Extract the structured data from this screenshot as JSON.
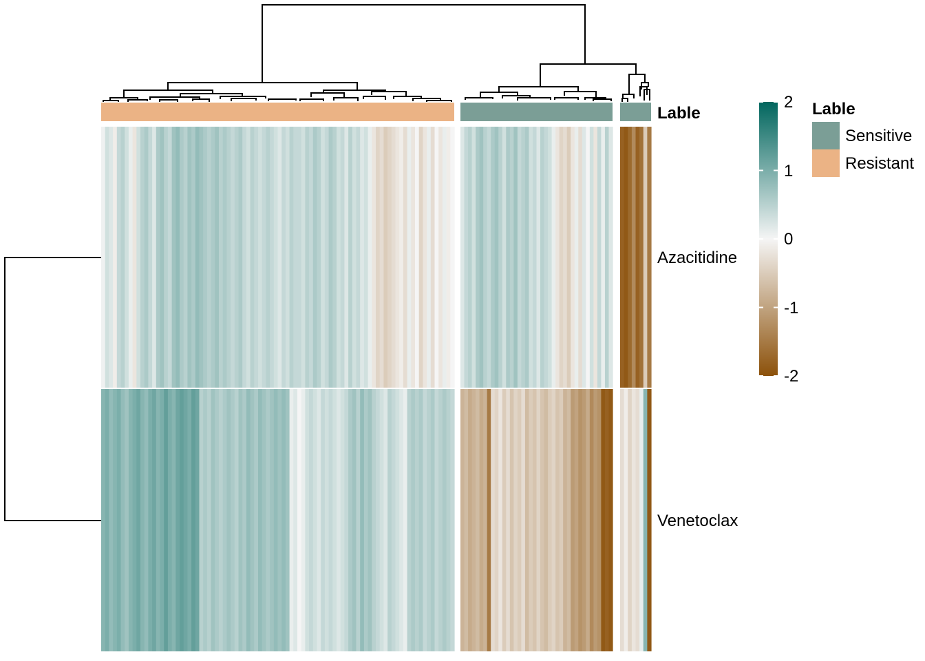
{
  "chart_data": {
    "type": "heatmap",
    "rows": [
      "Azacitidine",
      "Venetoclax"
    ],
    "column_groups": [
      {
        "label": "Resistant",
        "n_columns": 90
      },
      {
        "label": "Sensitive",
        "n_columns": 40
      },
      {
        "label": "Sensitive",
        "n_columns": 8
      }
    ],
    "annotation": {
      "title": "Lable",
      "levels": [
        {
          "label": "Sensitive",
          "color": "#7b9e96"
        },
        {
          "label": "Resistant",
          "color": "#ebb385"
        }
      ]
    },
    "color_scale": {
      "title": "",
      "min": -2,
      "max": 2,
      "ticks": [
        "2",
        "1",
        "0",
        "-1",
        "-2"
      ],
      "colors": {
        "-2": "#8c510a",
        "0": "#f5f5f5",
        "2": "#01665e"
      }
    },
    "values": {
      "Azacitidine": [
        [
          0.05,
          0.3,
          0.2,
          -0.1,
          0.4,
          0.5,
          0.3,
          0.1,
          -0.2,
          0.3,
          0.5,
          0.6,
          0.4,
          0.2,
          0.6,
          0.7,
          0.5,
          0.4,
          0.7,
          0.8,
          0.6,
          0.5,
          0.7,
          0.6,
          0.8,
          0.7,
          0.6,
          0.5,
          0.6,
          0.7,
          0.5,
          0.6,
          0.5,
          0.4,
          0.5,
          0.6,
          0.4,
          0.3,
          0.5,
          0.4,
          0.3,
          0.4,
          0.5,
          0.4,
          0.3,
          0.2,
          0.4,
          0.3,
          0.5,
          0.4,
          0.4,
          0.3,
          0.5,
          0.4,
          0.6,
          0.5,
          0.3,
          0.4,
          0.6,
          0.5,
          0.3,
          0.4,
          0.2,
          0.5,
          0.3,
          0.4,
          0.2,
          0.3,
          0.1,
          -0.2,
          -0.4,
          -0.3,
          -0.5,
          -0.4,
          -0.3,
          -0.2,
          -0.1,
          -0.3,
          0.1,
          -0.2,
          0.0,
          -0.4,
          -0.2,
          0.1,
          -0.3,
          0.0,
          -0.2,
          0.1,
          -0.1,
          0.0
        ],
        [
          0.2,
          0.4,
          0.5,
          0.3,
          0.6,
          0.7,
          0.5,
          0.4,
          0.6,
          0.7,
          0.5,
          0.3,
          0.6,
          0.5,
          0.7,
          0.4,
          0.5,
          0.6,
          0.3,
          0.4,
          0.2,
          0.5,
          0.4,
          0.3,
          0.1,
          -0.2,
          -0.4,
          -0.3,
          -0.5,
          -0.2,
          0.1,
          -0.3,
          0.2,
          0.0,
          0.3,
          -0.2,
          0.4,
          0.1,
          0.5,
          0.2
        ],
        [
          -1.8,
          -1.9,
          -1.7,
          -1.3,
          -1.8,
          -1.6,
          -0.5,
          -1.5
        ]
      ],
      "Venetoclax": [
        [
          0.9,
          1.0,
          0.8,
          0.9,
          1.0,
          0.8,
          0.7,
          0.9,
          1.0,
          1.1,
          0.9,
          0.8,
          1.0,
          1.1,
          0.9,
          1.0,
          1.2,
          1.0,
          0.9,
          1.1,
          1.2,
          1.1,
          1.0,
          1.2,
          1.1,
          0.5,
          0.6,
          0.5,
          0.7,
          0.6,
          0.5,
          0.6,
          0.7,
          0.6,
          0.5,
          0.7,
          0.6,
          0.8,
          0.7,
          0.6,
          0.8,
          0.7,
          0.6,
          0.7,
          0.8,
          0.7,
          0.8,
          0.7,
          0.1,
          0.2,
          0.0,
          0.1,
          0.3,
          0.4,
          0.3,
          0.2,
          0.4,
          0.3,
          0.4,
          0.3,
          0.2,
          0.3,
          0.4,
          0.6,
          0.7,
          0.5,
          0.8,
          0.6,
          0.7,
          0.5,
          0.4,
          0.3,
          0.2,
          0.5,
          0.4,
          0.3,
          0.2,
          0.1,
          0.5,
          0.6,
          0.5,
          0.6,
          0.4,
          0.5,
          0.6,
          0.4,
          0.5,
          0.6,
          0.5,
          0.4
        ],
        [
          -0.8,
          -0.7,
          -0.9,
          -0.8,
          -0.7,
          -0.9,
          -0.8,
          -1.5,
          -0.3,
          -0.4,
          -0.2,
          -0.5,
          -0.3,
          -0.6,
          -0.4,
          -0.5,
          -0.3,
          -0.7,
          -0.5,
          -0.6,
          -0.4,
          -0.6,
          -0.7,
          -0.5,
          -0.4,
          -0.6,
          -0.5,
          -0.8,
          -0.7,
          -1.1,
          -1.0,
          -1.2,
          -1.1,
          -0.9,
          -1.3,
          -1.1,
          -1.2,
          -1.9,
          -1.8,
          -1.9
        ],
        [
          -0.3,
          -0.1,
          -0.4,
          -0.2,
          -0.3,
          0.1,
          0.9,
          -1.9
        ]
      ]
    }
  }
}
